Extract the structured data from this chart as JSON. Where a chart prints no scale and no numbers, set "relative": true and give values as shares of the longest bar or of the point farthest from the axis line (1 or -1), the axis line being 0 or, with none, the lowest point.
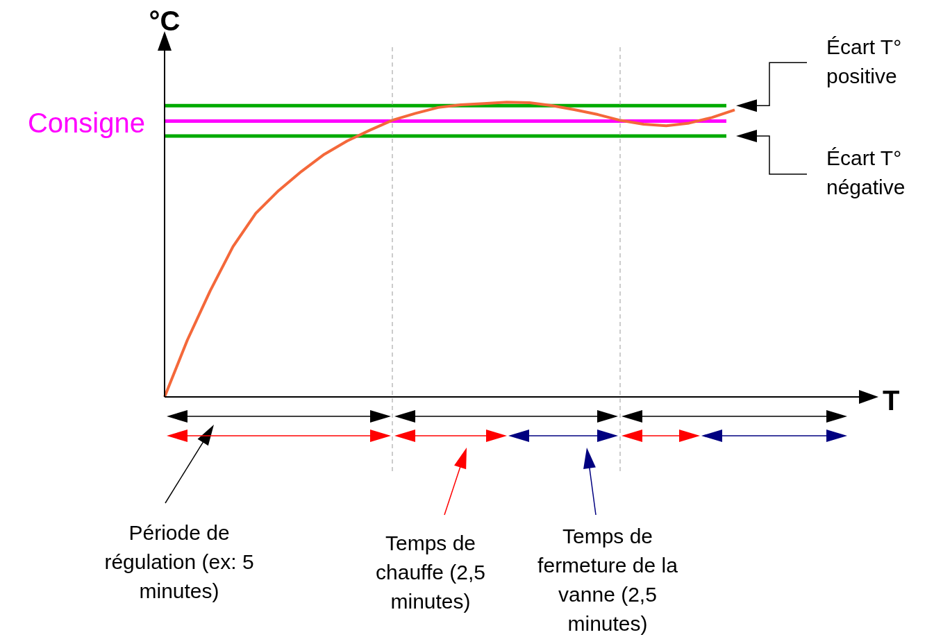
{
  "chart_data": {
    "type": "line",
    "ylabel": "°C",
    "relative": true,
    "marker": "none",
    "categories": [
      null,
      null,
      null,
      null,
      null,
      null,
      null,
      null,
      null,
      null,
      null,
      null,
      null,
      null,
      null,
      null,
      null,
      null,
      null,
      null,
      null,
      null,
      null,
      null,
      null,
      null
    ],
    "series": [
      {
        "color": "#f4683a",
        "values": [
          0,
          0.193,
          0.36,
          0.51,
          0.623,
          0.7,
          0.765,
          0.823,
          0.868,
          0.905,
          0.939,
          0.962,
          0.982,
          0.991,
          0.995,
          1.0,
          0.998,
          0.988,
          0.974,
          0.958,
          0.938,
          0.925,
          0.92,
          0.929,
          0.948,
          0.974
        ]
      }
    ],
    "ref_lines": [
      {
        "axis": "y",
        "value": 0.988,
        "color": "#00aa00"
      },
      {
        "axis": "y",
        "value": 0.936,
        "label": "Consigne",
        "color": "#ff00ff"
      },
      {
        "axis": "y",
        "value": 0.885,
        "color": "#00aa00"
      }
    ],
    "annotations": [
      "Période de régulation (ex: 5 minutes)",
      "Temps de chauffe (2,5 minutes)",
      "Temps de fermeture de la vanne (2,5 minutes)",
      "T",
      "Écart T° positive",
      "Écart T° négative"
    ]
  }
}
